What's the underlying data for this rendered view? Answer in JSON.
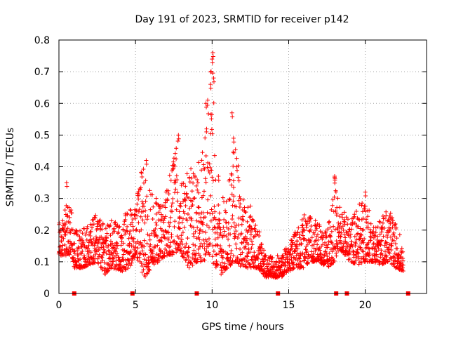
{
  "chart_data": {
    "type": "scatter",
    "title": "Day 191 of 2023, SRMTID for receiver p142",
    "xlabel": "GPS time / hours",
    "ylabel": "SRMTID / TECUs",
    "xlim": [
      0,
      24
    ],
    "ylim": [
      0,
      0.8
    ],
    "xticks": [
      0,
      5,
      10,
      15,
      20
    ],
    "yticks": [
      0,
      0.1,
      0.2,
      0.3,
      0.4,
      0.5,
      0.6,
      0.7,
      0.8
    ],
    "xtick_labels": [
      "0",
      "5",
      "10",
      "15",
      "20"
    ],
    "ytick_labels": [
      "0",
      "0.1",
      "0.2",
      "0.3",
      "0.4",
      "0.5",
      "0.6",
      "0.7",
      "0.8"
    ],
    "grid": true,
    "marker": "+",
    "color": "#ff0000",
    "series": [
      {
        "name": "SRMTID",
        "sampling": "approximate envelope read from plot: [hour, low, high]",
        "profile": [
          [
            0.0,
            0.12,
            0.22
          ],
          [
            0.3,
            0.12,
            0.25
          ],
          [
            0.5,
            0.12,
            0.34
          ],
          [
            0.8,
            0.12,
            0.28
          ],
          [
            1.0,
            0.08,
            0.2
          ],
          [
            1.5,
            0.08,
            0.2
          ],
          [
            2.0,
            0.09,
            0.24
          ],
          [
            2.5,
            0.1,
            0.25
          ],
          [
            3.0,
            0.06,
            0.22
          ],
          [
            3.5,
            0.08,
            0.24
          ],
          [
            4.0,
            0.07,
            0.24
          ],
          [
            4.5,
            0.07,
            0.27
          ],
          [
            5.0,
            0.12,
            0.27
          ],
          [
            5.3,
            0.08,
            0.38
          ],
          [
            5.6,
            0.05,
            0.4
          ],
          [
            6.0,
            0.08,
            0.33
          ],
          [
            6.5,
            0.1,
            0.3
          ],
          [
            7.0,
            0.12,
            0.33
          ],
          [
            7.5,
            0.12,
            0.44
          ],
          [
            7.8,
            0.14,
            0.5
          ],
          [
            8.0,
            0.12,
            0.36
          ],
          [
            8.5,
            0.08,
            0.4
          ],
          [
            9.0,
            0.1,
            0.42
          ],
          [
            9.5,
            0.1,
            0.5
          ],
          [
            9.7,
            0.12,
            0.6
          ],
          [
            10.0,
            0.1,
            0.76
          ],
          [
            10.3,
            0.08,
            0.45
          ],
          [
            10.6,
            0.06,
            0.3
          ],
          [
            11.0,
            0.08,
            0.35
          ],
          [
            11.5,
            0.1,
            0.49
          ],
          [
            12.0,
            0.08,
            0.3
          ],
          [
            12.5,
            0.08,
            0.28
          ],
          [
            13.0,
            0.08,
            0.22
          ],
          [
            13.5,
            0.05,
            0.12
          ],
          [
            14.0,
            0.05,
            0.12
          ],
          [
            14.5,
            0.05,
            0.12
          ],
          [
            15.0,
            0.07,
            0.16
          ],
          [
            15.5,
            0.08,
            0.2
          ],
          [
            16.0,
            0.08,
            0.25
          ],
          [
            16.5,
            0.1,
            0.24
          ],
          [
            17.0,
            0.1,
            0.22
          ],
          [
            17.5,
            0.08,
            0.2
          ],
          [
            18.0,
            0.1,
            0.37
          ],
          [
            18.3,
            0.14,
            0.3
          ],
          [
            18.7,
            0.12,
            0.25
          ],
          [
            19.0,
            0.1,
            0.23
          ],
          [
            19.5,
            0.09,
            0.28
          ],
          [
            20.0,
            0.1,
            0.31
          ],
          [
            20.5,
            0.1,
            0.22
          ],
          [
            21.0,
            0.09,
            0.24
          ],
          [
            21.5,
            0.1,
            0.27
          ],
          [
            22.0,
            0.08,
            0.22
          ],
          [
            22.5,
            0.07,
            0.16
          ]
        ],
        "peak_points": [
          [
            0.5,
            0.35
          ],
          [
            5.4,
            0.38
          ],
          [
            5.7,
            0.42
          ],
          [
            7.8,
            0.5
          ],
          [
            9.6,
            0.6
          ],
          [
            9.9,
            0.66
          ],
          [
            10.0,
            0.74
          ],
          [
            10.05,
            0.76
          ],
          [
            10.1,
            0.68
          ],
          [
            11.3,
            0.57
          ],
          [
            11.4,
            0.49
          ],
          [
            18.0,
            0.37
          ],
          [
            20.0,
            0.32
          ]
        ]
      }
    ],
    "flag_markers_x": [
      1.0,
      4.8,
      9.0,
      14.3,
      18.1,
      18.8,
      22.8
    ]
  }
}
